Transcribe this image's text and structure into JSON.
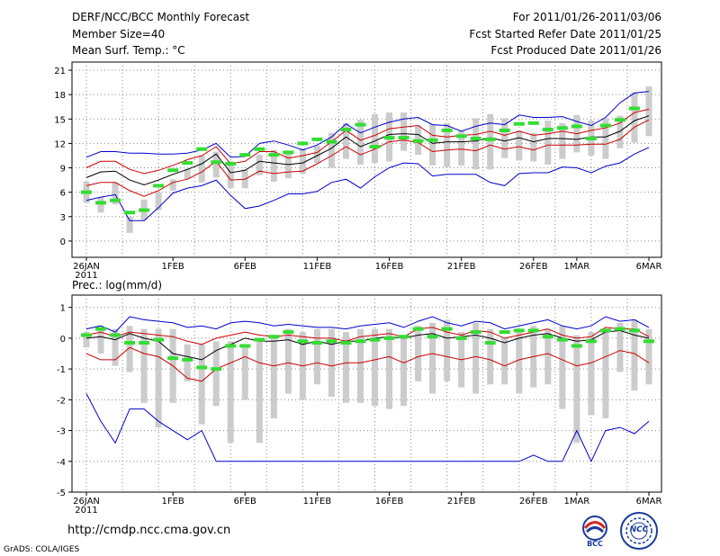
{
  "header": {
    "title": "DERF/NCC/BCC Monthly Forecast",
    "member_size": "Member Size=40",
    "variable": "Mean Surf. Temp.: °C",
    "period": "For 2011/01/26-2011/03/06",
    "started": "Fcst Started Refer Date 2011/01/25",
    "produced": "Fcst Produced Date 2011/01/26"
  },
  "footer": {
    "url": "http://cmdp.ncc.cma.gov.cn",
    "grads": "GrADS: COLA/IGES",
    "logo_bcc": "BCC",
    "logo_ncc": "NCC"
  },
  "colors": {
    "max_min": "#0000cc",
    "spread": "#cc0000",
    "mean": "#000000",
    "obs": "#33dd33",
    "box": "#cccccc",
    "grid": "#888888"
  },
  "chart_data": [
    {
      "type": "line",
      "title": "Mean Surf. Temp.: °C",
      "x_labels": [
        "26JAN",
        "1FEB",
        "6FEB",
        "11FEB",
        "16FEB",
        "21FEB",
        "26FEB",
        "1MAR",
        "6MAR"
      ],
      "x_label_days": [
        0,
        6,
        11,
        16,
        21,
        26,
        31,
        34,
        39
      ],
      "year_label": "2011",
      "ylim": [
        -2,
        22
      ],
      "yticks": [
        0,
        3,
        6,
        9,
        12,
        15,
        18,
        21
      ],
      "series": [
        {
          "name": "max",
          "color": "max_min",
          "values": [
            10.3,
            11,
            11,
            10.8,
            10.8,
            10.7,
            10.7,
            10.8,
            11.2,
            12,
            10.3,
            10.4,
            12,
            12.3,
            11.8,
            11.2,
            11.8,
            12.8,
            14.4,
            13.3,
            14,
            14.6,
            15,
            15.2,
            14.3,
            14.2,
            13.5,
            14.1,
            14.5,
            14.3,
            15.5,
            15.2,
            15.2,
            15.3,
            14.7,
            14.2,
            15.2,
            17,
            18.2,
            18.4
          ]
        },
        {
          "name": "upper",
          "color": "spread",
          "values": [
            9,
            9.8,
            9.8,
            8.8,
            8.3,
            8.7,
            9.3,
            10,
            10.5,
            11.6,
            9.5,
            9.8,
            11,
            11,
            10.2,
            10.5,
            10.9,
            12.2,
            13.6,
            12.4,
            13,
            13.8,
            14,
            14.2,
            13,
            12.8,
            13,
            13.1,
            13.5,
            13,
            13.5,
            13,
            13.2,
            13.5,
            13.2,
            13.6,
            13.9,
            14.5,
            15.8,
            16.2
          ]
        },
        {
          "name": "mean",
          "color": "mean",
          "values": [
            7.8,
            8.5,
            8.6,
            7.5,
            6.9,
            7.5,
            8.2,
            8.8,
            9.5,
            10.7,
            8.4,
            8.7,
            9.8,
            9.6,
            9.4,
            9.6,
            10.5,
            11.4,
            12.8,
            11.6,
            12.3,
            13.1,
            13.2,
            13.1,
            12,
            12.2,
            12.2,
            12.3,
            12.7,
            12.3,
            12.7,
            12.2,
            12.6,
            12.6,
            12.5,
            12.8,
            12.8,
            13.5,
            14.8,
            15.4
          ]
        },
        {
          "name": "lower",
          "color": "spread",
          "values": [
            6.8,
            7.2,
            7.2,
            6.2,
            5.5,
            6.2,
            7.2,
            7.6,
            8.5,
            9.8,
            7.5,
            7.6,
            8.6,
            8.3,
            8.5,
            8.6,
            9.5,
            10.5,
            11.6,
            10.6,
            11.3,
            12.2,
            12.4,
            12.1,
            11,
            11.2,
            11.3,
            11.1,
            11.8,
            11.3,
            11.6,
            11.2,
            11.8,
            11.8,
            11.8,
            11.9,
            11.9,
            12.5,
            14,
            14.9
          ]
        },
        {
          "name": "min",
          "color": "max_min",
          "values": [
            5,
            5.4,
            5.7,
            2.5,
            2.5,
            4.1,
            5.9,
            6.5,
            6.8,
            7.5,
            5.6,
            4,
            4.3,
            5,
            5.8,
            5.8,
            6.1,
            7.2,
            7.6,
            6.5,
            7.9,
            9,
            9.6,
            9.5,
            8,
            8.2,
            8.2,
            8.2,
            7.2,
            6.8,
            8.3,
            8.4,
            8.4,
            9.1,
            9,
            8.4,
            9.2,
            9.6,
            10.7,
            11.5
          ]
        }
      ],
      "boxes": [
        [
          4.7,
          7.3
        ],
        [
          3.5,
          5.4
        ],
        [
          4.5,
          7.2
        ],
        [
          1,
          3
        ],
        [
          2.6,
          5.1
        ],
        [
          3.8,
          6
        ],
        [
          6.2,
          7.6
        ],
        [
          7.6,
          8.9
        ],
        [
          7.2,
          10.5
        ],
        [
          7.8,
          11
        ],
        [
          6.5,
          9.8
        ],
        [
          6.5,
          8.8
        ],
        [
          8.1,
          10.6
        ],
        [
          7.3,
          11.2
        ],
        [
          7.7,
          11.1
        ],
        [
          8.3,
          11.4
        ],
        [
          9.6,
          11.7
        ],
        [
          9,
          13.3
        ],
        [
          10.1,
          14.5
        ],
        [
          9.4,
          14.9
        ],
        [
          9.6,
          15.6
        ],
        [
          9.8,
          15.8
        ],
        [
          11.1,
          15.8
        ],
        [
          10.6,
          14.2
        ],
        [
          9.3,
          14.4
        ],
        [
          9.1,
          14.5
        ],
        [
          9.3,
          13.6
        ],
        [
          8.8,
          15.1
        ],
        [
          8.8,
          15.6
        ],
        [
          10.2,
          15.1
        ],
        [
          9.9,
          13.6
        ],
        [
          9.8,
          13.3
        ],
        [
          9.4,
          14.8
        ],
        [
          10.1,
          14.5
        ],
        [
          10.9,
          15.5
        ],
        [
          10.5,
          14.8
        ],
        [
          10.1,
          15.1
        ],
        [
          11.4,
          15.4
        ],
        [
          12.1,
          18.3
        ],
        [
          12.9,
          19
        ]
      ],
      "obs": [
        6,
        4.7,
        5,
        3.5,
        3.8,
        6.8,
        8.7,
        9.6,
        11.3,
        9.7,
        9.5,
        10.6,
        11.3,
        10.6,
        10.9,
        12,
        12.5,
        12.2,
        13.7,
        14.3,
        11.6,
        12.7,
        12.7,
        12.3,
        12.4,
        13.6,
        12.9,
        12.6,
        12.5,
        13.6,
        14.4,
        14.5,
        13.7,
        13.9,
        14.1,
        12.6,
        14.2,
        14.9,
        16.3
      ]
    },
    {
      "type": "line",
      "title": "Prec.: log(mm/d)",
      "x_labels": [
        "26JAN",
        "1FEB",
        "6FEB",
        "11FEB",
        "16FEB",
        "21FEB",
        "26FEB",
        "1MAR",
        "6MAR"
      ],
      "x_label_days": [
        0,
        6,
        11,
        16,
        21,
        26,
        31,
        34,
        39
      ],
      "year_label": "2011",
      "ylim": [
        -5,
        1.4
      ],
      "yticks": [
        -5,
        -4,
        -3,
        -2,
        -1,
        0,
        1
      ],
      "series": [
        {
          "name": "max",
          "color": "max_min",
          "values": [
            0.3,
            0.4,
            0.2,
            0.7,
            0.6,
            0.55,
            0.5,
            0.35,
            0.4,
            0.3,
            0.5,
            0.55,
            0.5,
            0.4,
            0.45,
            0.4,
            0.35,
            0.35,
            0.3,
            0.4,
            0.45,
            0.5,
            0.35,
            0.55,
            0.7,
            0.5,
            0.4,
            0.55,
            0.5,
            0.3,
            0.4,
            0.5,
            0.6,
            0.4,
            0.3,
            0.4,
            0.7,
            0.55,
            0.6,
            0.35
          ]
        },
        {
          "name": "upper",
          "color": "spread",
          "values": [
            0.1,
            0.2,
            0.05,
            0.2,
            0.15,
            0.1,
            0.05,
            -0.1,
            -0.2,
            0,
            0.1,
            0.2,
            0.1,
            0.05,
            0.1,
            0.05,
            0,
            0,
            -0.1,
            0.05,
            0.1,
            0.15,
            0.05,
            0.3,
            0.35,
            0.2,
            0.1,
            0.25,
            0.2,
            0,
            0.1,
            0.2,
            0.3,
            0.1,
            0,
            0.05,
            0.35,
            0.3,
            0.3,
            0.05
          ]
        },
        {
          "name": "mean",
          "color": "mean",
          "values": [
            0,
            0.05,
            -0.05,
            0.15,
            0,
            -0.1,
            -0.5,
            -0.6,
            -0.7,
            -0.4,
            -0.2,
            0,
            -0.1,
            -0.1,
            -0.05,
            -0.2,
            -0.1,
            -0.2,
            -0.1,
            -0.1,
            0,
            0.05,
            0,
            0.1,
            0.15,
            0,
            0.05,
            0.1,
            0,
            -0.15,
            0,
            0.1,
            0.15,
            0,
            -0.1,
            -0.05,
            0.2,
            0.25,
            0.1,
            0
          ]
        },
        {
          "name": "lower",
          "color": "spread",
          "values": [
            -0.5,
            -0.7,
            -0.7,
            -0.3,
            -0.5,
            -0.6,
            -0.9,
            -1.3,
            -1.4,
            -1,
            -0.8,
            -0.6,
            -0.8,
            -0.9,
            -0.8,
            -0.9,
            -0.8,
            -0.9,
            -0.8,
            -0.8,
            -0.7,
            -0.6,
            -0.8,
            -0.6,
            -0.5,
            -0.6,
            -0.7,
            -0.6,
            -0.7,
            -0.9,
            -0.7,
            -0.6,
            -0.5,
            -0.7,
            -0.9,
            -0.8,
            -0.6,
            -0.4,
            -0.5,
            -0.8
          ]
        },
        {
          "name": "min",
          "color": "max_min",
          "values": [
            -1.8,
            -2.7,
            -3.4,
            -2.3,
            -2.3,
            -2.7,
            -3,
            -3.3,
            -3,
            -4,
            -4,
            -4,
            -4,
            -4,
            -4,
            -4,
            -4,
            -4,
            -4,
            -4,
            -4,
            -4,
            -4,
            -4,
            -4,
            -4,
            -4,
            -4,
            -4,
            -4,
            -4,
            -3.8,
            -4,
            -4,
            -3,
            -4,
            -3,
            -2.9,
            -3.1,
            -2.7
          ]
        }
      ],
      "boxes": [
        [
          -0.3,
          0.2
        ],
        [
          -0.5,
          0.3
        ],
        [
          -0.9,
          0.3
        ],
        [
          -1.1,
          0.4
        ],
        [
          -2.1,
          0.3
        ],
        [
          -2.9,
          0.3
        ],
        [
          -2.1,
          0.3
        ],
        [
          -1.4,
          -0.2
        ],
        [
          -2.8,
          -0.2
        ],
        [
          -2.2,
          -0.1
        ],
        [
          -3.4,
          -0.1
        ],
        [
          -2,
          -0.2
        ],
        [
          -3.4,
          -0.1
        ],
        [
          -2.6,
          0.1
        ],
        [
          -1.8,
          0.3
        ],
        [
          -2,
          0.2
        ],
        [
          -1.5,
          0.3
        ],
        [
          -1.9,
          0.3
        ],
        [
          -2.1,
          0.2
        ],
        [
          -2.1,
          0.3
        ],
        [
          -2.2,
          0.3
        ],
        [
          -2.3,
          0.3
        ],
        [
          -2.2,
          0.1
        ],
        [
          -1.4,
          0.4
        ],
        [
          -1.8,
          0.5
        ],
        [
          -1.4,
          0.6
        ],
        [
          -1.6,
          0.2
        ],
        [
          -1.8,
          0.5
        ],
        [
          -1.5,
          0.3
        ],
        [
          -1.5,
          0
        ],
        [
          -1.8,
          0.2
        ],
        [
          -1.6,
          0.4
        ],
        [
          -1.5,
          0.3
        ],
        [
          -2.3,
          0.4
        ],
        [
          -3.4,
          0.1
        ],
        [
          -2.5,
          0.2
        ],
        [
          -2.6,
          0.3
        ],
        [
          -1.1,
          0.5
        ],
        [
          -1.7,
          0.6
        ],
        [
          -1.5,
          0.3
        ]
      ],
      "obs": [
        0.1,
        0.3,
        0.1,
        -0.15,
        -0.15,
        -0.05,
        -0.65,
        -0.7,
        -0.95,
        -1,
        -0.25,
        -0.25,
        -0.05,
        0.05,
        0.2,
        -0.1,
        -0.15,
        -0.1,
        -0.15,
        -0.1,
        -0.05,
        0,
        0.05,
        0.3,
        0.05,
        0.3,
        0,
        0.2,
        -0.15,
        0.2,
        0.25,
        0.25,
        0.05,
        -0.05,
        -0.25,
        -0.1,
        0.25,
        0.3,
        0.25,
        -0.1
      ]
    }
  ]
}
